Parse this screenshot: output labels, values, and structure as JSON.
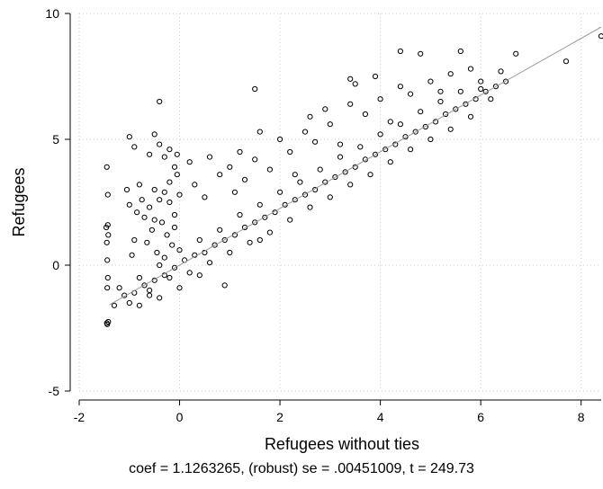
{
  "chart_data": {
    "type": "scatter",
    "xlabel": "Refugees without ties",
    "ylabel": "Refugees",
    "xlim": [
      -2,
      8.4
    ],
    "ylim": [
      -5,
      10
    ],
    "xticks": [
      -2,
      0,
      2,
      4,
      6,
      8
    ],
    "yticks": [
      -5,
      0,
      5,
      10
    ],
    "grid": true,
    "marker": "hollow-circle",
    "fit_line": {
      "intercept": 0.0,
      "slope": 1.1263265,
      "x_range": [
        -1.4,
        8.4
      ],
      "color": "#999999"
    },
    "series": [
      {
        "points": [
          [
            -1.45,
            -2.3
          ],
          [
            -1.42,
            -2.25
          ],
          [
            -1.44,
            -2.35
          ],
          [
            -1.43,
            -0.5
          ],
          [
            -1.44,
            0.2
          ],
          [
            -1.45,
            0.9
          ],
          [
            -1.43,
            1.6
          ],
          [
            -1.42,
            1.2
          ],
          [
            -1.44,
            -0.9
          ],
          [
            -1.43,
            2.8
          ],
          [
            -1.45,
            3.9
          ],
          [
            -1.46,
            1.5
          ],
          [
            -1.0,
            5.1
          ],
          [
            -0.9,
            4.7
          ],
          [
            -0.6,
            4.4
          ],
          [
            -0.5,
            5.2
          ],
          [
            -0.4,
            4.8
          ],
          [
            -0.4,
            6.5
          ],
          [
            -0.3,
            4.3
          ],
          [
            -0.2,
            4.6
          ],
          [
            -0.1,
            3.9
          ],
          [
            -0.05,
            4.4
          ],
          [
            -0.8,
            3.2
          ],
          [
            -0.75,
            2.6
          ],
          [
            -0.7,
            1.9
          ],
          [
            -0.65,
            0.9
          ],
          [
            -0.6,
            2.3
          ],
          [
            -0.55,
            1.4
          ],
          [
            -0.5,
            3.0
          ],
          [
            -0.45,
            0.5
          ],
          [
            -0.4,
            2.6
          ],
          [
            -0.35,
            1.7
          ],
          [
            -0.3,
            2.9
          ],
          [
            -0.25,
            1.2
          ],
          [
            -0.2,
            3.3
          ],
          [
            -0.15,
            0.8
          ],
          [
            -0.1,
            2.0
          ],
          [
            -0.05,
            3.6
          ],
          [
            -0.9,
            1.0
          ],
          [
            -1.0,
            2.4
          ],
          [
            -1.05,
            3.0
          ],
          [
            -0.95,
            0.4
          ],
          [
            -0.85,
            2.1
          ],
          [
            -0.5,
            1.8
          ],
          [
            -0.3,
            0.3
          ],
          [
            -0.2,
            2.5
          ],
          [
            -0.1,
            1.5
          ],
          [
            0.0,
            2.8
          ],
          [
            0.2,
            4.1
          ],
          [
            0.3,
            3.2
          ],
          [
            0.5,
            2.7
          ],
          [
            0.6,
            4.3
          ],
          [
            0.8,
            3.6
          ],
          [
            1.0,
            3.9
          ],
          [
            1.1,
            2.9
          ],
          [
            1.3,
            3.4
          ],
          [
            1.5,
            4.2
          ],
          [
            1.6,
            5.3
          ],
          [
            1.5,
            7.0
          ],
          [
            1.8,
            3.8
          ],
          [
            2.0,
            5.0
          ],
          [
            2.2,
            4.5
          ],
          [
            2.3,
            3.6
          ],
          [
            2.5,
            5.3
          ],
          [
            2.7,
            4.9
          ],
          [
            2.9,
            6.2
          ],
          [
            3.0,
            5.6
          ],
          [
            3.2,
            4.8
          ],
          [
            3.4,
            6.4
          ],
          [
            3.5,
            7.2
          ],
          [
            3.7,
            6.0
          ],
          [
            3.9,
            7.5
          ],
          [
            4.0,
            6.6
          ],
          [
            4.2,
            5.7
          ],
          [
            4.4,
            7.1
          ],
          [
            4.6,
            6.8
          ],
          [
            4.8,
            8.4
          ],
          [
            5.0,
            7.3
          ],
          [
            5.2,
            6.9
          ],
          [
            5.4,
            7.6
          ],
          [
            5.6,
            8.5
          ],
          [
            5.8,
            7.8
          ],
          [
            6.0,
            7.0
          ],
          [
            6.2,
            6.6
          ],
          [
            6.4,
            7.7
          ],
          [
            6.7,
            8.4
          ],
          [
            7.7,
            8.1
          ],
          [
            8.4,
            9.1
          ],
          [
            4.4,
            8.5
          ],
          [
            3.4,
            7.4
          ],
          [
            2.6,
            5.9
          ],
          [
            1.2,
            4.5
          ],
          [
            -1.3,
            -1.6
          ],
          [
            -1.1,
            -1.2
          ],
          [
            -0.9,
            -1.1
          ],
          [
            -0.7,
            -0.8
          ],
          [
            -0.5,
            -0.6
          ],
          [
            -0.3,
            -0.4
          ],
          [
            -0.1,
            -0.1
          ],
          [
            0.1,
            0.2
          ],
          [
            0.3,
            0.4
          ],
          [
            0.5,
            0.5
          ],
          [
            0.7,
            0.8
          ],
          [
            0.9,
            1.0
          ],
          [
            1.1,
            1.2
          ],
          [
            1.3,
            1.5
          ],
          [
            1.5,
            1.7
          ],
          [
            1.7,
            1.9
          ],
          [
            1.9,
            2.1
          ],
          [
            2.1,
            2.4
          ],
          [
            2.3,
            2.6
          ],
          [
            2.5,
            2.8
          ],
          [
            2.7,
            3.0
          ],
          [
            2.9,
            3.3
          ],
          [
            3.1,
            3.5
          ],
          [
            3.3,
            3.7
          ],
          [
            3.5,
            3.9
          ],
          [
            3.7,
            4.2
          ],
          [
            3.9,
            4.4
          ],
          [
            4.1,
            4.6
          ],
          [
            4.3,
            4.8
          ],
          [
            4.5,
            5.1
          ],
          [
            4.7,
            5.3
          ],
          [
            4.9,
            5.5
          ],
          [
            5.1,
            5.7
          ],
          [
            5.3,
            6.0
          ],
          [
            5.5,
            6.2
          ],
          [
            5.7,
            6.4
          ],
          [
            5.9,
            6.6
          ],
          [
            6.1,
            6.9
          ],
          [
            6.3,
            7.1
          ],
          [
            6.5,
            7.3
          ],
          [
            -1.2,
            -0.9
          ],
          [
            -0.8,
            -0.5
          ],
          [
            -0.4,
            0.0
          ],
          [
            0.0,
            0.6
          ],
          [
            0.4,
            1.0
          ],
          [
            0.8,
            1.4
          ],
          [
            1.2,
            2.0
          ],
          [
            1.6,
            2.4
          ],
          [
            2.0,
            2.9
          ],
          [
            2.4,
            3.3
          ],
          [
            2.8,
            3.8
          ],
          [
            3.2,
            4.3
          ],
          [
            3.6,
            4.7
          ],
          [
            4.0,
            5.2
          ],
          [
            4.4,
            5.6
          ],
          [
            4.8,
            6.1
          ],
          [
            5.2,
            6.5
          ],
          [
            5.6,
            6.9
          ],
          [
            6.0,
            7.3
          ],
          [
            1.0,
            0.5
          ],
          [
            1.4,
            0.9
          ],
          [
            1.8,
            1.3
          ],
          [
            2.2,
            1.8
          ],
          [
            2.6,
            2.3
          ],
          [
            3.0,
            2.7
          ],
          [
            3.4,
            3.2
          ],
          [
            3.8,
            3.6
          ],
          [
            4.2,
            4.1
          ],
          [
            4.6,
            4.6
          ],
          [
            5.0,
            5.0
          ],
          [
            5.4,
            5.4
          ],
          [
            5.8,
            5.9
          ],
          [
            -1.0,
            -1.5
          ],
          [
            -0.6,
            -1.0
          ],
          [
            -0.2,
            -0.5
          ],
          [
            0.2,
            -0.3
          ],
          [
            0.6,
            0.1
          ],
          [
            0.9,
            -0.8
          ],
          [
            0.0,
            -0.9
          ],
          [
            -0.4,
            -1.3
          ],
          [
            -0.8,
            -1.6
          ],
          [
            -0.6,
            -1.2
          ],
          [
            0.4,
            -0.4
          ],
          [
            1.6,
            1.0
          ]
        ]
      }
    ]
  },
  "footnote": "coef = 1.1263265, (robust) se = .00451009, t = 249.73"
}
